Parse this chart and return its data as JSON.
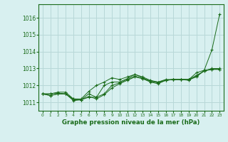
{
  "background_color": "#d8f0f0",
  "grid_color": "#b8d8d8",
  "line_color": "#1a6b1a",
  "title": "Graphe pression niveau de la mer (hPa)",
  "xlim": [
    -0.5,
    23.5
  ],
  "ylim": [
    1010.5,
    1016.8
  ],
  "yticks": [
    1011,
    1012,
    1013,
    1014,
    1015,
    1016
  ],
  "xticks": [
    0,
    1,
    2,
    3,
    4,
    5,
    6,
    7,
    8,
    9,
    10,
    11,
    12,
    13,
    14,
    15,
    16,
    17,
    18,
    19,
    20,
    21,
    22,
    23
  ],
  "series": [
    [
      1011.5,
      1011.5,
      1011.6,
      1011.6,
      1011.2,
      1011.15,
      1011.3,
      1011.3,
      1012.0,
      1012.2,
      1012.2,
      1012.4,
      1012.65,
      1012.5,
      1012.3,
      1012.2,
      1012.35,
      1012.35,
      1012.35,
      1012.35,
      1012.5,
      1012.9,
      1014.1,
      1016.2
    ],
    [
      1011.5,
      1011.4,
      1011.5,
      1011.5,
      1011.15,
      1011.15,
      1011.5,
      1011.3,
      1011.5,
      1012.0,
      1012.15,
      1012.35,
      1012.55,
      1012.4,
      1012.25,
      1012.15,
      1012.3,
      1012.35,
      1012.35,
      1012.35,
      1012.6,
      1012.85,
      1013.0,
      1013.0
    ],
    [
      1011.5,
      1011.4,
      1011.5,
      1011.5,
      1011.2,
      1011.2,
      1011.65,
      1012.0,
      1012.2,
      1012.45,
      1012.35,
      1012.5,
      1012.65,
      1012.45,
      1012.25,
      1012.2,
      1012.3,
      1012.35,
      1012.35,
      1012.35,
      1012.75,
      1012.9,
      1012.95,
      1012.95
    ],
    [
      1011.5,
      1011.5,
      1011.55,
      1011.5,
      1011.1,
      1011.15,
      1011.35,
      1011.2,
      1011.45,
      1011.85,
      1012.1,
      1012.3,
      1012.5,
      1012.4,
      1012.2,
      1012.1,
      1012.3,
      1012.35,
      1012.35,
      1012.3,
      1012.55,
      1012.85,
      1012.95,
      1012.95
    ]
  ]
}
